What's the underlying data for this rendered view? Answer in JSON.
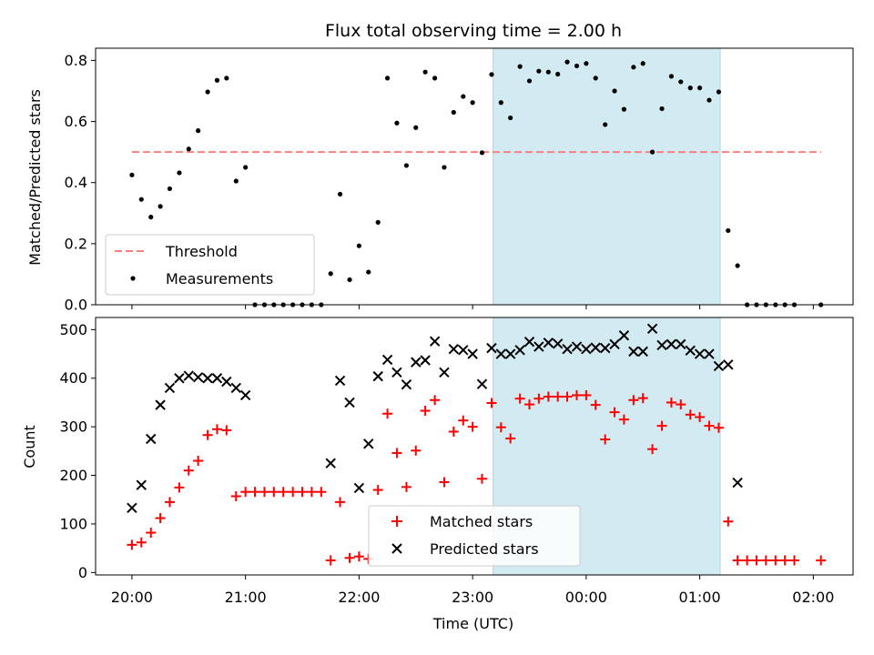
{
  "chart_data": [
    {
      "type": "scatter",
      "title": "Flux total observing time = 2.00 h",
      "xlabel": "",
      "ylabel": "Matched/Predicted stars",
      "xlim_hours": [
        19.68,
        26.35
      ],
      "ylim": [
        0,
        0.84
      ],
      "yticks": [
        0.0,
        0.2,
        0.4,
        0.6,
        0.8
      ],
      "ytick_labels": [
        "0.0",
        "0.2",
        "0.4",
        "0.6",
        "0.8"
      ],
      "grid": false,
      "legend_position": "lower-left",
      "shaded_interval_hours": [
        23.18,
        25.18
      ],
      "shade_color": "#add8e6",
      "threshold": {
        "name": "Threshold",
        "value": 0.5,
        "x_range_hours": [
          20.0,
          26.07
        ],
        "color": "#ff7f7f"
      },
      "measurements": {
        "name": "Measurements",
        "color": "#000000",
        "x_hours": [
          20.0,
          20.083,
          20.167,
          20.25,
          20.333,
          20.417,
          20.5,
          20.583,
          20.667,
          20.75,
          20.833,
          20.917,
          21.0,
          21.083,
          21.167,
          21.25,
          21.333,
          21.417,
          21.5,
          21.583,
          21.667,
          21.75,
          21.833,
          21.917,
          22.0,
          22.083,
          22.167,
          22.25,
          22.333,
          22.417,
          22.5,
          22.583,
          22.667,
          22.75,
          22.833,
          22.917,
          23.0,
          23.083,
          23.167,
          23.25,
          23.333,
          23.417,
          23.5,
          23.583,
          23.667,
          23.75,
          23.833,
          23.917,
          24.0,
          24.083,
          24.167,
          24.25,
          24.333,
          24.417,
          24.5,
          24.583,
          24.667,
          24.75,
          24.833,
          24.917,
          25.0,
          25.083,
          25.167,
          25.25,
          25.333,
          25.417,
          25.5,
          25.583,
          25.667,
          25.75,
          25.833,
          26.067
        ],
        "y": [
          0.425,
          0.345,
          0.287,
          0.322,
          0.38,
          0.432,
          0.51,
          0.57,
          0.697,
          0.735,
          0.742,
          0.405,
          0.45,
          0.0,
          0.0,
          0.0,
          0.0,
          0.0,
          0.0,
          0.0,
          0.0,
          0.102,
          0.362,
          0.082,
          0.193,
          0.107,
          0.27,
          0.742,
          0.595,
          0.456,
          0.58,
          0.762,
          0.742,
          0.45,
          0.63,
          0.682,
          0.662,
          0.498,
          0.754,
          0.662,
          0.612,
          0.78,
          0.733,
          0.765,
          0.762,
          0.755,
          0.795,
          0.782,
          0.79,
          0.742,
          0.59,
          0.7,
          0.64,
          0.778,
          0.79,
          0.5,
          0.642,
          0.748,
          0.73,
          0.71,
          0.71,
          0.67,
          0.697,
          0.243,
          0.128,
          0.0,
          0.0,
          0.0,
          0.0,
          0.0,
          0.0,
          0.0
        ]
      }
    },
    {
      "type": "scatter",
      "title": "",
      "xlabel": "Time (UTC)",
      "ylabel": "Count",
      "xlim_hours": [
        19.68,
        26.35
      ],
      "ylim": [
        -5,
        525
      ],
      "yticks": [
        0,
        100,
        200,
        300,
        400,
        500
      ],
      "ytick_labels": [
        "0",
        "100",
        "200",
        "300",
        "400",
        "500"
      ],
      "xticks_hours": [
        20,
        21,
        22,
        23,
        24,
        25,
        26
      ],
      "xtick_labels": [
        "20:00",
        "21:00",
        "22:00",
        "23:00",
        "00:00",
        "01:00",
        "02:00"
      ],
      "grid": false,
      "legend_position": "lower-center",
      "shaded_interval_hours": [
        23.18,
        25.18
      ],
      "series": [
        {
          "name": "Matched stars",
          "marker": "+",
          "color": "#ff0000",
          "x_hours": [
            20.0,
            20.083,
            20.167,
            20.25,
            20.333,
            20.417,
            20.5,
            20.583,
            20.667,
            20.75,
            20.833,
            20.917,
            21.0,
            21.083,
            21.167,
            21.25,
            21.333,
            21.417,
            21.5,
            21.583,
            21.667,
            21.75,
            21.833,
            21.917,
            22.0,
            22.083,
            22.167,
            22.25,
            22.333,
            22.417,
            22.5,
            22.583,
            22.667,
            22.75,
            22.833,
            22.917,
            23.0,
            23.083,
            23.167,
            23.25,
            23.333,
            23.417,
            23.5,
            23.583,
            23.667,
            23.75,
            23.833,
            23.917,
            24.0,
            24.083,
            24.167,
            24.25,
            24.333,
            24.417,
            24.5,
            24.583,
            24.667,
            24.75,
            24.833,
            24.917,
            25.0,
            25.083,
            25.167,
            25.25,
            25.333,
            25.417,
            25.5,
            25.583,
            25.667,
            25.75,
            25.833,
            26.067
          ],
          "y": [
            57,
            62,
            82,
            112,
            145,
            175,
            210,
            230,
            283,
            295,
            293,
            157,
            166,
            166,
            166,
            166,
            166,
            166,
            166,
            166,
            166,
            25,
            145,
            30,
            33,
            28,
            170,
            327,
            246,
            176,
            251,
            333,
            355,
            186,
            290,
            313,
            300,
            193,
            349,
            299,
            276,
            358,
            346,
            358,
            362,
            362,
            362,
            365,
            365,
            345,
            274,
            330,
            315,
            355,
            359,
            254,
            302,
            350,
            346,
            325,
            320,
            302,
            298,
            105,
            25,
            25,
            25,
            25,
            25,
            25,
            25,
            25
          ]
        },
        {
          "name": "Predicted stars",
          "marker": "x",
          "color": "#000000",
          "x_hours": [
            20.0,
            20.083,
            20.167,
            20.25,
            20.333,
            20.417,
            20.5,
            20.583,
            20.667,
            20.75,
            20.833,
            20.917,
            21.0,
            21.75,
            21.833,
            21.917,
            22.0,
            22.083,
            22.167,
            22.25,
            22.333,
            22.417,
            22.5,
            22.583,
            22.667,
            22.75,
            22.833,
            22.917,
            23.0,
            23.083,
            23.167,
            23.25,
            23.333,
            23.417,
            23.5,
            23.583,
            23.667,
            23.75,
            23.833,
            23.917,
            24.0,
            24.083,
            24.167,
            24.25,
            24.333,
            24.417,
            24.5,
            24.583,
            24.667,
            24.75,
            24.833,
            24.917,
            25.0,
            25.083,
            25.167,
            25.25,
            25.333
          ],
          "y": [
            133,
            180,
            275,
            345,
            380,
            400,
            405,
            402,
            400,
            400,
            393,
            380,
            365,
            225,
            395,
            350,
            174,
            265,
            404,
            438,
            412,
            387,
            433,
            437,
            476,
            412,
            460,
            458,
            450,
            388,
            462,
            450,
            450,
            458,
            475,
            465,
            473,
            471,
            460,
            465,
            460,
            463,
            462,
            470,
            488,
            455,
            455,
            502,
            468,
            470,
            470,
            457,
            450,
            450,
            425,
            428,
            185
          ]
        }
      ]
    }
  ]
}
